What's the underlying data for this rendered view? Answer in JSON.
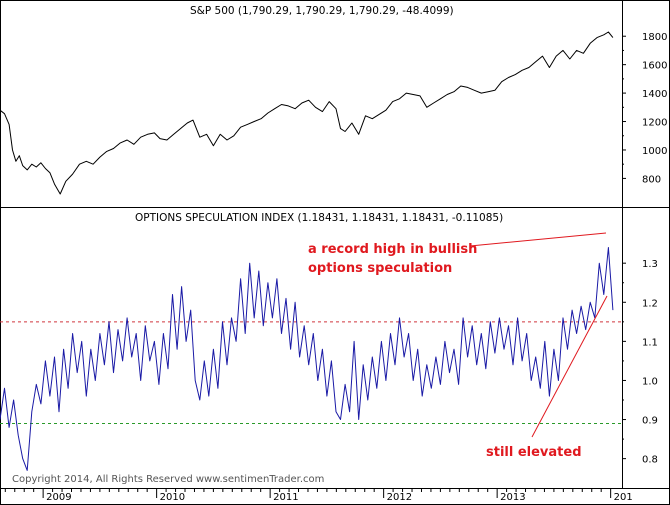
{
  "chart_data": [
    {
      "type": "line",
      "title": "S&P 500 (1,790.29, 1,790.29, 1,790.29, -48.4099)",
      "yticks": [
        800,
        1000,
        1200,
        1400,
        1600,
        1800
      ],
      "ylim": [
        620,
        1900
      ],
      "grid": false,
      "series": [
        {
          "color": "#000000",
          "points": [
            [
              2008.62,
              1280
            ],
            [
              2008.66,
              1255
            ],
            [
              2008.7,
              1180
            ],
            [
              2008.73,
              1000
            ],
            [
              2008.76,
              920
            ],
            [
              2008.79,
              960
            ],
            [
              2008.82,
              890
            ],
            [
              2008.86,
              860
            ],
            [
              2008.9,
              900
            ],
            [
              2008.94,
              880
            ],
            [
              2008.98,
              910
            ],
            [
              2009.02,
              870
            ],
            [
              2009.06,
              840
            ],
            [
              2009.1,
              760
            ],
            [
              2009.15,
              690
            ],
            [
              2009.2,
              780
            ],
            [
              2009.26,
              830
            ],
            [
              2009.32,
              900
            ],
            [
              2009.38,
              920
            ],
            [
              2009.44,
              900
            ],
            [
              2009.5,
              950
            ],
            [
              2009.56,
              990
            ],
            [
              2009.62,
              1010
            ],
            [
              2009.68,
              1050
            ],
            [
              2009.74,
              1070
            ],
            [
              2009.8,
              1040
            ],
            [
              2009.86,
              1090
            ],
            [
              2009.92,
              1110
            ],
            [
              2009.98,
              1120
            ],
            [
              2010.03,
              1080
            ],
            [
              2010.09,
              1070
            ],
            [
              2010.15,
              1110
            ],
            [
              2010.21,
              1150
            ],
            [
              2010.27,
              1190
            ],
            [
              2010.32,
              1210
            ],
            [
              2010.38,
              1090
            ],
            [
              2010.44,
              1110
            ],
            [
              2010.5,
              1030
            ],
            [
              2010.56,
              1110
            ],
            [
              2010.62,
              1070
            ],
            [
              2010.68,
              1100
            ],
            [
              2010.74,
              1160
            ],
            [
              2010.8,
              1180
            ],
            [
              2010.86,
              1200
            ],
            [
              2010.92,
              1220
            ],
            [
              2010.98,
              1260
            ],
            [
              2011.04,
              1290
            ],
            [
              2011.1,
              1320
            ],
            [
              2011.16,
              1310
            ],
            [
              2011.22,
              1290
            ],
            [
              2011.28,
              1330
            ],
            [
              2011.34,
              1350
            ],
            [
              2011.4,
              1300
            ],
            [
              2011.46,
              1270
            ],
            [
              2011.52,
              1340
            ],
            [
              2011.58,
              1290
            ],
            [
              2011.62,
              1150
            ],
            [
              2011.66,
              1130
            ],
            [
              2011.72,
              1190
            ],
            [
              2011.78,
              1110
            ],
            [
              2011.84,
              1240
            ],
            [
              2011.9,
              1220
            ],
            [
              2011.96,
              1250
            ],
            [
              2012.02,
              1280
            ],
            [
              2012.08,
              1340
            ],
            [
              2012.14,
              1360
            ],
            [
              2012.2,
              1400
            ],
            [
              2012.26,
              1390
            ],
            [
              2012.32,
              1380
            ],
            [
              2012.38,
              1300
            ],
            [
              2012.44,
              1330
            ],
            [
              2012.5,
              1360
            ],
            [
              2012.56,
              1390
            ],
            [
              2012.62,
              1410
            ],
            [
              2012.68,
              1450
            ],
            [
              2012.74,
              1440
            ],
            [
              2012.8,
              1420
            ],
            [
              2012.86,
              1400
            ],
            [
              2012.92,
              1410
            ],
            [
              2012.98,
              1420
            ],
            [
              2013.04,
              1480
            ],
            [
              2013.1,
              1510
            ],
            [
              2013.16,
              1530
            ],
            [
              2013.22,
              1560
            ],
            [
              2013.28,
              1580
            ],
            [
              2013.34,
              1620
            ],
            [
              2013.4,
              1660
            ],
            [
              2013.46,
              1580
            ],
            [
              2013.52,
              1660
            ],
            [
              2013.58,
              1700
            ],
            [
              2013.64,
              1640
            ],
            [
              2013.7,
              1700
            ],
            [
              2013.76,
              1680
            ],
            [
              2013.82,
              1750
            ],
            [
              2013.88,
              1790
            ],
            [
              2013.94,
              1810
            ],
            [
              2013.98,
              1830
            ],
            [
              2014.02,
              1790
            ]
          ]
        }
      ]
    },
    {
      "type": "line",
      "title": "OPTIONS SPECULATION INDEX (1.18431, 1.18431, 1.18431, -0.11085)",
      "yticks": [
        0.8,
        0.9,
        1.0,
        1.1,
        1.2,
        1.3
      ],
      "ylim": [
        0.73,
        1.39
      ],
      "grid": false,
      "reference_lines": [
        {
          "value": 1.15,
          "color": "#d0363f"
        },
        {
          "value": 0.89,
          "color": "#2a9a2a"
        }
      ],
      "series": [
        {
          "color": "#1a1aa6",
          "points": [
            [
              2008.62,
              0.9
            ],
            [
              2008.66,
              0.98
            ],
            [
              2008.7,
              0.88
            ],
            [
              2008.74,
              0.95
            ],
            [
              2008.78,
              0.86
            ],
            [
              2008.82,
              0.8
            ],
            [
              2008.86,
              0.77
            ],
            [
              2008.9,
              0.92
            ],
            [
              2008.94,
              0.99
            ],
            [
              2008.98,
              0.94
            ],
            [
              2009.02,
              1.05
            ],
            [
              2009.06,
              0.96
            ],
            [
              2009.1,
              1.06
            ],
            [
              2009.14,
              0.92
            ],
            [
              2009.18,
              1.08
            ],
            [
              2009.22,
              0.98
            ],
            [
              2009.26,
              1.12
            ],
            [
              2009.3,
              1.02
            ],
            [
              2009.34,
              1.1
            ],
            [
              2009.38,
              0.96
            ],
            [
              2009.42,
              1.08
            ],
            [
              2009.46,
              1.0
            ],
            [
              2009.5,
              1.12
            ],
            [
              2009.54,
              1.04
            ],
            [
              2009.58,
              1.15
            ],
            [
              2009.62,
              1.02
            ],
            [
              2009.66,
              1.13
            ],
            [
              2009.7,
              1.05
            ],
            [
              2009.74,
              1.16
            ],
            [
              2009.78,
              1.06
            ],
            [
              2009.82,
              1.12
            ],
            [
              2009.86,
              1.0
            ],
            [
              2009.9,
              1.14
            ],
            [
              2009.94,
              1.05
            ],
            [
              2009.98,
              1.1
            ],
            [
              2010.02,
              0.99
            ],
            [
              2010.06,
              1.12
            ],
            [
              2010.1,
              1.03
            ],
            [
              2010.14,
              1.22
            ],
            [
              2010.18,
              1.08
            ],
            [
              2010.22,
              1.24
            ],
            [
              2010.26,
              1.1
            ],
            [
              2010.3,
              1.18
            ],
            [
              2010.34,
              1.0
            ],
            [
              2010.38,
              0.95
            ],
            [
              2010.42,
              1.05
            ],
            [
              2010.46,
              0.96
            ],
            [
              2010.5,
              1.08
            ],
            [
              2010.54,
              0.98
            ],
            [
              2010.58,
              1.15
            ],
            [
              2010.62,
              1.04
            ],
            [
              2010.66,
              1.16
            ],
            [
              2010.7,
              1.1
            ],
            [
              2010.74,
              1.26
            ],
            [
              2010.78,
              1.12
            ],
            [
              2010.82,
              1.3
            ],
            [
              2010.86,
              1.16
            ],
            [
              2010.9,
              1.28
            ],
            [
              2010.94,
              1.14
            ],
            [
              2010.98,
              1.25
            ],
            [
              2011.02,
              1.16
            ],
            [
              2011.06,
              1.26
            ],
            [
              2011.1,
              1.12
            ],
            [
              2011.14,
              1.21
            ],
            [
              2011.18,
              1.08
            ],
            [
              2011.22,
              1.2
            ],
            [
              2011.26,
              1.06
            ],
            [
              2011.3,
              1.14
            ],
            [
              2011.34,
              1.04
            ],
            [
              2011.38,
              1.12
            ],
            [
              2011.42,
              1.0
            ],
            [
              2011.46,
              1.08
            ],
            [
              2011.5,
              0.96
            ],
            [
              2011.54,
              1.05
            ],
            [
              2011.58,
              0.92
            ],
            [
              2011.62,
              0.9
            ],
            [
              2011.66,
              0.99
            ],
            [
              2011.7,
              0.92
            ],
            [
              2011.74,
              1.1
            ],
            [
              2011.78,
              0.9
            ],
            [
              2011.82,
              1.04
            ],
            [
              2011.86,
              0.95
            ],
            [
              2011.9,
              1.06
            ],
            [
              2011.94,
              0.98
            ],
            [
              2011.98,
              1.1
            ],
            [
              2012.02,
              1.0
            ],
            [
              2012.06,
              1.12
            ],
            [
              2012.1,
              1.04
            ],
            [
              2012.14,
              1.16
            ],
            [
              2012.18,
              1.06
            ],
            [
              2012.22,
              1.12
            ],
            [
              2012.26,
              1.0
            ],
            [
              2012.3,
              1.08
            ],
            [
              2012.34,
              0.96
            ],
            [
              2012.38,
              1.04
            ],
            [
              2012.42,
              0.98
            ],
            [
              2012.46,
              1.06
            ],
            [
              2012.5,
              0.99
            ],
            [
              2012.54,
              1.1
            ],
            [
              2012.58,
              1.02
            ],
            [
              2012.62,
              1.08
            ],
            [
              2012.66,
              0.99
            ],
            [
              2012.7,
              1.16
            ],
            [
              2012.74,
              1.06
            ],
            [
              2012.78,
              1.14
            ],
            [
              2012.82,
              1.04
            ],
            [
              2012.86,
              1.12
            ],
            [
              2012.9,
              1.03
            ],
            [
              2012.94,
              1.15
            ],
            [
              2012.98,
              1.07
            ],
            [
              2013.02,
              1.16
            ],
            [
              2013.06,
              1.08
            ],
            [
              2013.1,
              1.14
            ],
            [
              2013.14,
              1.04
            ],
            [
              2013.18,
              1.16
            ],
            [
              2013.22,
              1.05
            ],
            [
              2013.26,
              1.12
            ],
            [
              2013.3,
              1.0
            ],
            [
              2013.34,
              1.06
            ],
            [
              2013.38,
              0.98
            ],
            [
              2013.42,
              1.1
            ],
            [
              2013.46,
              0.96
            ],
            [
              2013.5,
              1.08
            ],
            [
              2013.54,
              1.0
            ],
            [
              2013.58,
              1.16
            ],
            [
              2013.62,
              1.08
            ],
            [
              2013.66,
              1.18
            ],
            [
              2013.7,
              1.12
            ],
            [
              2013.74,
              1.19
            ],
            [
              2013.78,
              1.13
            ],
            [
              2013.82,
              1.2
            ],
            [
              2013.86,
              1.16
            ],
            [
              2013.9,
              1.3
            ],
            [
              2013.94,
              1.22
            ],
            [
              2013.98,
              1.34
            ],
            [
              2014.02,
              1.18
            ]
          ]
        }
      ]
    }
  ],
  "xaxis": {
    "range": [
      2008.62,
      2014.1
    ],
    "tick_labels": [
      "2009",
      "2010",
      "2011",
      "2012",
      "2013",
      "201"
    ]
  },
  "annotations": [
    {
      "text": "a record high in bullish"
    },
    {
      "text": "options speculation"
    },
    {
      "text": "still elevated"
    }
  ],
  "copyright": "Copyright 2014, All Rights Reserved  www.sentimenTrader.com"
}
